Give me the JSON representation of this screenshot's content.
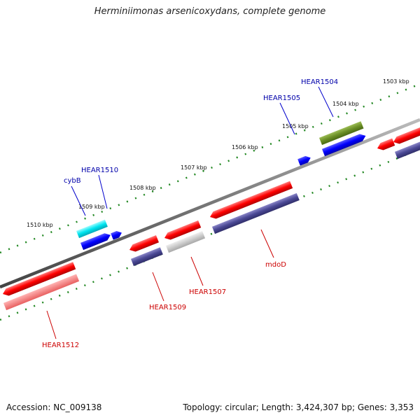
{
  "title": "Herminiimonas arsenicoxydans, complete genome",
  "footer": {
    "accession": "Accession: NC_009138",
    "summary": "Topology: circular; Length: 3,424,307 bp; Genes: 3,353"
  },
  "colors": {
    "forward_gene": "#0000ff",
    "reverse_gene": "#ff0000",
    "forward_label": "#0000aa",
    "reverse_label": "#cc0000",
    "backbone": "#888888",
    "tick": "#228822"
  },
  "scale_labels": [
    "1510 kbp",
    "1509 kbp",
    "1508 kbp",
    "1507 kbp",
    "1506 kbp",
    "1505 kbp",
    "1504 kbp",
    "1503 kbp"
  ],
  "gene_labels": {
    "forward": [
      "cybB",
      "HEAR1510",
      "HEAR1505",
      "HEAR1504"
    ],
    "reverse": [
      "HEAR1512",
      "HEAR1509",
      "HEAR1507",
      "mdoD"
    ]
  }
}
